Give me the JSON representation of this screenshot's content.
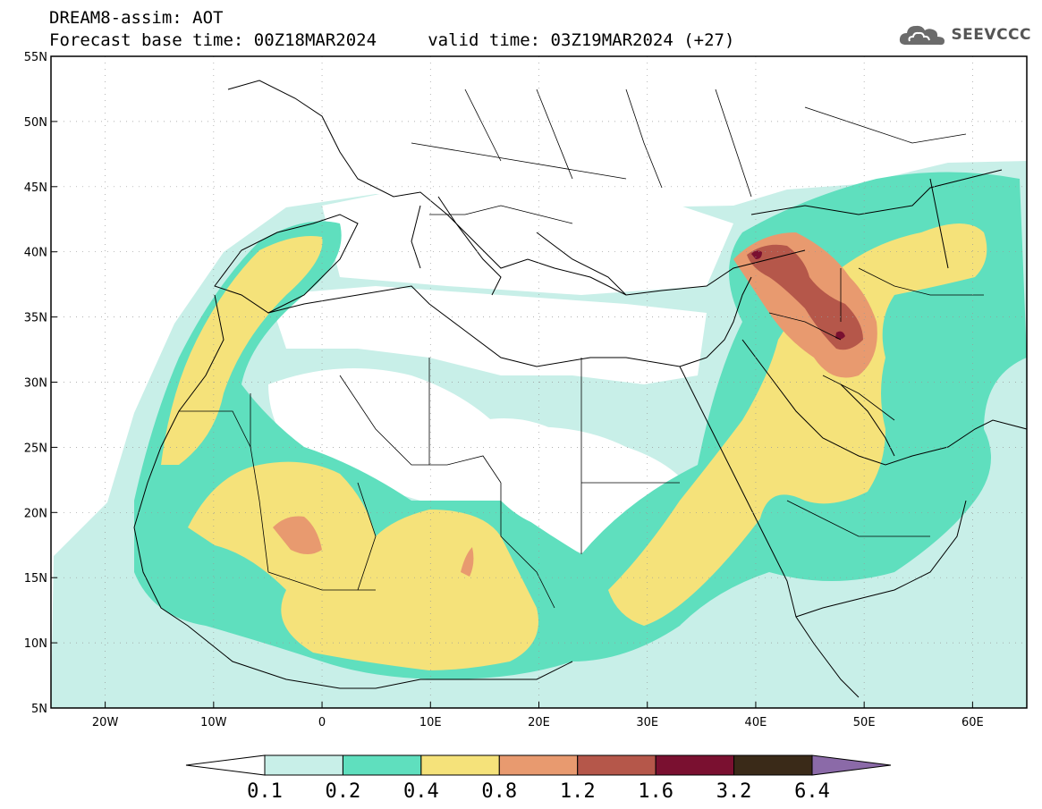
{
  "header": {
    "title": "DREAM8-assim: AOT",
    "subtitle": "Forecast base time: 00Z18MAR2024     valid time: 03Z19MAR2024 (+27)",
    "logo_text": "SEEVCCC",
    "logo_icon": "cloud-icon"
  },
  "map": {
    "lon_range": [
      -25,
      65
    ],
    "lat_range": [
      5,
      55
    ],
    "lon_ticks": [
      "20W",
      "10W",
      "0",
      "10E",
      "20E",
      "30E",
      "40E",
      "50E",
      "60E"
    ],
    "lat_ticks": [
      "55N",
      "50N",
      "45N",
      "40N",
      "35N",
      "30N",
      "25N",
      "20N",
      "15N",
      "10N",
      "5N"
    ],
    "grid": "dotted"
  },
  "colorbar": {
    "labels": [
      "0.1",
      "0.2",
      "0.4",
      "0.8",
      "1.2",
      "1.6",
      "3.2",
      "6.4"
    ],
    "colors": [
      "#ffffff",
      "#c8efe8",
      "#5fdfbe",
      "#f5e27a",
      "#e89a6f",
      "#b5574a",
      "#7a1030",
      "#3a2a18",
      "#8b6aa8"
    ]
  }
}
